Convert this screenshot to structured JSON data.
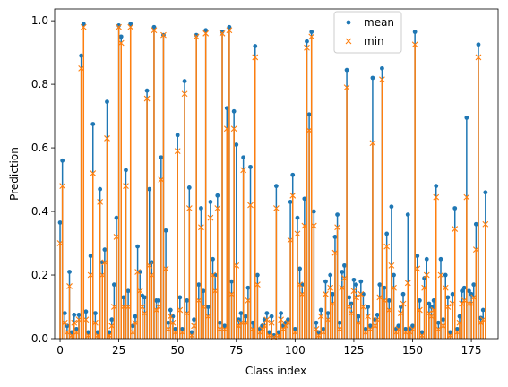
{
  "chart_data": {
    "type": "stem",
    "xlabel": "Class index",
    "ylabel": "Prediction",
    "xlim": [
      -2.3,
      186.4
    ],
    "ylim": [
      0,
      1.037
    ],
    "xticks": [
      0,
      25,
      50,
      75,
      100,
      125,
      150,
      175
    ],
    "yticks": [
      {
        "value": 0,
        "label": "0.0"
      },
      {
        "value": 0.2,
        "label": "0.2"
      },
      {
        "value": 0.4,
        "label": "0.4"
      },
      {
        "value": 0.6,
        "label": "0.6"
      },
      {
        "value": 0.8,
        "label": "0.8"
      },
      {
        "value": 1.0,
        "label": "1.0"
      }
    ],
    "series": [
      {
        "name": "mean",
        "color": "#1f77b4",
        "marker": "dot",
        "values": [
          0.365,
          0.56,
          0.08,
          0.04,
          0.21,
          0.02,
          0.075,
          0.03,
          0.075,
          0.89,
          0.99,
          0.085,
          0.02,
          0.26,
          0.675,
          0.08,
          0.02,
          0.47,
          0.24,
          0.28,
          0.745,
          0.02,
          0.06,
          0.17,
          0.38,
          0.985,
          0.95,
          0.13,
          0.53,
          0.15,
          0.99,
          0.04,
          0.07,
          0.29,
          0.21,
          0.135,
          0.13,
          0.78,
          0.47,
          0.24,
          0.98,
          0.12,
          0.12,
          0.57,
          0.955,
          0.34,
          0.05,
          0.09,
          0.07,
          0.03,
          0.64,
          0.13,
          0.03,
          0.81,
          0.12,
          0.475,
          0.02,
          0.06,
          0.955,
          0.17,
          0.41,
          0.15,
          0.97,
          0.1,
          0.43,
          0.25,
          0.2,
          0.45,
          0.05,
          0.965,
          0.04,
          0.725,
          0.98,
          0.18,
          0.715,
          0.61,
          0.06,
          0.08,
          0.57,
          0.07,
          0.16,
          0.54,
          0.05,
          0.92,
          0.2,
          0.03,
          0.04,
          0.06,
          0.08,
          0.02,
          0.07,
          0.01,
          0.48,
          0.02,
          0.08,
          0.04,
          0.05,
          0.06,
          0.43,
          0.515,
          0.03,
          0.38,
          0.22,
          0.17,
          0.44,
          0.935,
          0.705,
          0.965,
          0.4,
          0.05,
          0.02,
          0.09,
          0.03,
          0.18,
          0.08,
          0.2,
          0.14,
          0.32,
          0.39,
          0.05,
          0.21,
          0.23,
          0.845,
          0.13,
          0.11,
          0.185,
          0.17,
          0.07,
          0.18,
          0.14,
          0.03,
          0.1,
          0.04,
          0.82,
          0.06,
          0.075,
          0.17,
          0.85,
          0.16,
          0.33,
          0.12,
          0.415,
          0.2,
          0.03,
          0.04,
          0.1,
          0.14,
          0.03,
          0.39,
          0.03,
          0.04,
          0.965,
          0.26,
          0.12,
          0.02,
          0.19,
          0.25,
          0.11,
          0.1,
          0.12,
          0.48,
          0.05,
          0.25,
          0.06,
          0.2,
          0.13,
          0.02,
          0.14,
          0.41,
          0.03,
          0.07,
          0.15,
          0.16,
          0.695,
          0.15,
          0.14,
          0.17,
          0.36,
          0.925,
          0.065,
          0.09,
          0.46
        ]
      },
      {
        "name": "min",
        "color": "#ff7f0e",
        "marker": "x",
        "values": [
          0.3,
          0.48,
          0.05,
          0.02,
          0.165,
          0.01,
          0.05,
          0.02,
          0.06,
          0.85,
          0.98,
          0.06,
          0.01,
          0.2,
          0.52,
          0.05,
          0.01,
          0.43,
          0.2,
          0.24,
          0.63,
          0.01,
          0.04,
          0.1,
          0.32,
          0.98,
          0.93,
          0.1,
          0.48,
          0.1,
          0.98,
          0.02,
          0.05,
          0.21,
          0.15,
          0.1,
          0.08,
          0.755,
          0.23,
          0.2,
          0.97,
          0.09,
          0.1,
          0.5,
          0.955,
          0.22,
          0.03,
          0.07,
          0.05,
          0.02,
          0.59,
          0.09,
          0.02,
          0.77,
          0.08,
          0.41,
          0.01,
          0.04,
          0.95,
          0.12,
          0.35,
          0.1,
          0.96,
          0.07,
          0.38,
          0.2,
          0.15,
          0.41,
          0.03,
          0.96,
          0.03,
          0.66,
          0.97,
          0.14,
          0.66,
          0.23,
          0.04,
          0.05,
          0.53,
          0.05,
          0.12,
          0.42,
          0.03,
          0.885,
          0.17,
          0.02,
          0.03,
          0.04,
          0.06,
          0.01,
          0.05,
          0.005,
          0.41,
          0.01,
          0.06,
          0.03,
          0.04,
          0.05,
          0.31,
          0.45,
          0.02,
          0.33,
          0.17,
          0.14,
          0.355,
          0.915,
          0.655,
          0.95,
          0.355,
          0.03,
          0.01,
          0.07,
          0.02,
          0.14,
          0.06,
          0.16,
          0.11,
          0.27,
          0.35,
          0.03,
          0.16,
          0.19,
          0.79,
          0.1,
          0.08,
          0.15,
          0.13,
          0.05,
          0.14,
          0.1,
          0.02,
          0.07,
          0.03,
          0.615,
          0.04,
          0.06,
          0.13,
          0.815,
          0.12,
          0.29,
          0.09,
          0.23,
          0.16,
          0.02,
          0.03,
          0.08,
          0.11,
          0.02,
          0.175,
          0.02,
          0.03,
          0.925,
          0.22,
          0.09,
          0.01,
          0.16,
          0.2,
          0.08,
          0.07,
          0.09,
          0.445,
          0.03,
          0.2,
          0.04,
          0.16,
          0.1,
          0.01,
          0.11,
          0.345,
          0.02,
          0.05,
          0.11,
          0.12,
          0.445,
          0.11,
          0.11,
          0.13,
          0.28,
          0.885,
          0.05,
          0.06,
          0.36
        ]
      }
    ]
  }
}
